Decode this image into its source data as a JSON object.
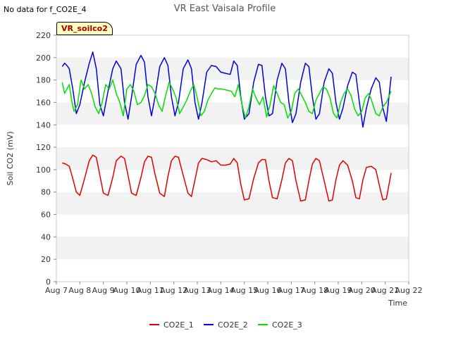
{
  "header": {
    "no_data_text": "No data for f_CO2E_4",
    "station_tag": "VR_soilco2"
  },
  "chart_data": {
    "type": "line",
    "title": "VR East Vaisala Profile",
    "xlabel": "Time",
    "ylabel": "Soil CO2 (mV)",
    "ylim": [
      0,
      220
    ],
    "yticks": [
      0,
      20,
      40,
      60,
      80,
      100,
      120,
      140,
      160,
      180,
      200,
      220
    ],
    "xlim": [
      7,
      22
    ],
    "xticks": [
      7,
      8,
      9,
      10,
      11,
      12,
      13,
      14,
      15,
      16,
      17,
      18,
      19,
      20,
      21,
      22
    ],
    "xtick_labels": [
      "Aug 7",
      "Aug 8",
      "Aug 9",
      "Aug 10",
      "Aug 11",
      "Aug 12",
      "Aug 13",
      "Aug 14",
      "Aug 15",
      "Aug 16",
      "Aug 17",
      "Aug 18",
      "Aug 19",
      "Aug 20",
      "Aug 21",
      "Aug 22"
    ],
    "grid": "horizontal bands",
    "legend_position": "bottom-center",
    "series": [
      {
        "name": "CO2E_1",
        "color": "#e00000",
        "x": [
          7.25,
          7.4,
          7.55,
          7.7,
          7.85,
          8.0,
          8.2,
          8.4,
          8.55,
          8.7,
          8.85,
          9.0,
          9.2,
          9.4,
          9.55,
          9.75,
          9.9,
          10.05,
          10.2,
          10.4,
          10.6,
          10.75,
          10.9,
          11.05,
          11.2,
          11.4,
          11.6,
          11.75,
          11.9,
          12.05,
          12.2,
          12.4,
          12.6,
          12.75,
          12.9,
          13.05,
          13.2,
          13.4,
          13.6,
          13.8,
          14.0,
          14.2,
          14.4,
          14.55,
          14.7,
          14.85,
          15.0,
          15.2,
          15.4,
          15.6,
          15.75,
          15.9,
          16.05,
          16.2,
          16.4,
          16.6,
          16.75,
          16.9,
          17.05,
          17.2,
          17.4,
          17.6,
          17.75,
          17.9,
          18.05,
          18.2,
          18.4,
          18.6,
          18.75,
          18.9,
          19.05,
          19.2,
          19.4,
          19.6,
          19.75,
          19.9,
          20.05,
          20.2,
          20.4,
          20.6,
          20.75,
          20.9,
          21.05,
          21.25
        ],
        "values": [
          106,
          105,
          103,
          92,
          80,
          77,
          92,
          108,
          113,
          111,
          95,
          79,
          77,
          93,
          108,
          112,
          110,
          95,
          79,
          77,
          93,
          107,
          112,
          111,
          96,
          79,
          76,
          94,
          108,
          112,
          111,
          95,
          79,
          76,
          91,
          106,
          110,
          109,
          107,
          108,
          104,
          104,
          105,
          110,
          106,
          87,
          73,
          74,
          92,
          106,
          109,
          109,
          90,
          75,
          74,
          91,
          106,
          110,
          108,
          90,
          72,
          73,
          90,
          105,
          110,
          108,
          90,
          72,
          73,
          91,
          104,
          108,
          104,
          90,
          75,
          74,
          91,
          102,
          103,
          100,
          86,
          73,
          74,
          97
        ]
      },
      {
        "name": "CO2E_2",
        "color": "#0000e0",
        "x": [
          7.25,
          7.35,
          7.45,
          7.55,
          7.7,
          7.85,
          8.0,
          8.2,
          8.4,
          8.55,
          8.7,
          8.85,
          9.0,
          9.2,
          9.4,
          9.55,
          9.75,
          9.9,
          10.05,
          10.2,
          10.4,
          10.6,
          10.75,
          10.9,
          11.05,
          11.2,
          11.4,
          11.6,
          11.75,
          11.9,
          12.05,
          12.2,
          12.4,
          12.6,
          12.75,
          12.9,
          13.05,
          13.2,
          13.4,
          13.6,
          13.8,
          14.0,
          14.2,
          14.4,
          14.55,
          14.7,
          14.85,
          15.0,
          15.2,
          15.4,
          15.6,
          15.75,
          15.9,
          16.05,
          16.2,
          16.4,
          16.6,
          16.75,
          16.9,
          17.05,
          17.2,
          17.4,
          17.6,
          17.75,
          17.9,
          18.05,
          18.2,
          18.4,
          18.6,
          18.75,
          18.9,
          19.05,
          19.2,
          19.4,
          19.6,
          19.75,
          19.9,
          20.05,
          20.2,
          20.4,
          20.6,
          20.75,
          20.9,
          21.05,
          21.25
        ],
        "values": [
          192,
          195,
          193,
          190,
          172,
          150,
          158,
          178,
          195,
          205,
          190,
          158,
          148,
          170,
          190,
          197,
          190,
          160,
          145,
          165,
          194,
          202,
          196,
          165,
          148,
          165,
          192,
          200,
          193,
          165,
          148,
          160,
          190,
          198,
          190,
          160,
          145,
          160,
          187,
          193,
          192,
          187,
          186,
          185,
          197,
          193,
          165,
          145,
          150,
          178,
          194,
          193,
          165,
          148,
          150,
          180,
          195,
          190,
          160,
          142,
          150,
          178,
          195,
          192,
          165,
          145,
          150,
          178,
          190,
          186,
          160,
          145,
          155,
          175,
          187,
          185,
          160,
          138,
          155,
          172,
          182,
          178,
          155,
          143,
          183
        ]
      },
      {
        "name": "CO2E_3",
        "color": "#00e000",
        "x": [
          7.25,
          7.35,
          7.45,
          7.55,
          7.65,
          7.75,
          7.9,
          8.05,
          8.2,
          8.35,
          8.5,
          8.65,
          8.8,
          8.95,
          9.1,
          9.25,
          9.4,
          9.55,
          9.7,
          9.85,
          10.0,
          10.15,
          10.3,
          10.45,
          10.6,
          10.75,
          10.9,
          11.05,
          11.2,
          11.35,
          11.5,
          11.65,
          11.8,
          11.95,
          12.1,
          12.25,
          12.4,
          12.55,
          12.7,
          12.85,
          13.0,
          13.15,
          13.3,
          13.45,
          13.6,
          13.75,
          13.9,
          14.05,
          14.25,
          14.45,
          14.6,
          14.75,
          14.9,
          15.05,
          15.2,
          15.35,
          15.5,
          15.65,
          15.8,
          15.95,
          16.1,
          16.25,
          16.4,
          16.55,
          16.7,
          16.85,
          17.0,
          17.15,
          17.3,
          17.45,
          17.6,
          17.75,
          17.9,
          18.05,
          18.2,
          18.35,
          18.5,
          18.65,
          18.8,
          18.95,
          19.1,
          19.25,
          19.4,
          19.55,
          19.7,
          19.85,
          20.0,
          20.15,
          20.3,
          20.45,
          20.6,
          20.75,
          20.9,
          21.05,
          21.25
        ],
        "values": [
          178,
          168,
          172,
          176,
          162,
          152,
          158,
          180,
          172,
          176,
          168,
          156,
          150,
          160,
          176,
          172,
          180,
          168,
          160,
          148,
          172,
          176,
          170,
          158,
          160,
          166,
          176,
          174,
          168,
          158,
          152,
          166,
          178,
          172,
          164,
          150,
          156,
          162,
          170,
          176,
          164,
          148,
          152,
          162,
          168,
          173,
          172,
          172,
          171,
          170,
          165,
          176,
          158,
          146,
          156,
          172,
          164,
          158,
          165,
          147,
          158,
          175,
          168,
          160,
          158,
          146,
          152,
          168,
          172,
          166,
          160,
          152,
          150,
          162,
          168,
          174,
          172,
          164,
          150,
          146,
          160,
          168,
          172,
          166,
          154,
          148,
          152,
          164,
          168,
          160,
          150,
          148,
          156,
          160,
          170
        ]
      }
    ]
  }
}
